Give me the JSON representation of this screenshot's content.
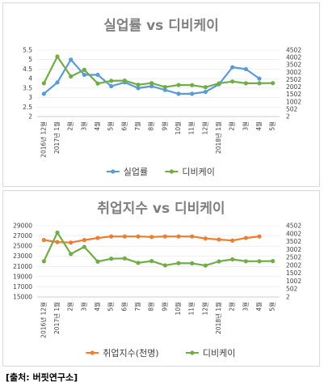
{
  "chart_data": [
    {
      "type": "line",
      "title": "실업률 vs 디비케이",
      "categories": [
        "2016년 12월",
        "2017년 1월",
        "2월",
        "3월",
        "4월",
        "5월",
        "6월",
        "7월",
        "8월",
        "9월",
        "10월",
        "11월",
        "12월",
        "2018년 1월",
        "2월",
        "3월",
        "4월",
        "5월"
      ],
      "left_axis": {
        "ylim": [
          2,
          5.5
        ],
        "ticks": [
          "2",
          "2.5",
          "3",
          "3.5",
          "4",
          "4.5",
          "5",
          "5.5"
        ]
      },
      "right_axis": {
        "ylim": [
          2,
          4502
        ],
        "ticks": [
          "2",
          "502",
          "1002",
          "1502",
          "2002",
          "2502",
          "3002",
          "3502",
          "4002",
          "4502"
        ]
      },
      "legend_position": "bottom",
      "series": [
        {
          "name": "실업률",
          "axis": "left",
          "color": "#5b9bd5",
          "values": [
            3.2,
            3.8,
            5.0,
            4.2,
            4.2,
            3.6,
            3.8,
            3.5,
            3.6,
            3.4,
            3.2,
            3.2,
            3.3,
            3.7,
            4.6,
            4.5,
            4.0,
            null
          ]
        },
        {
          "name": "디비케이",
          "axis": "right",
          "color": "#70ad47",
          "values": [
            2260,
            4070,
            2720,
            3170,
            2240,
            2420,
            2440,
            2160,
            2270,
            2000,
            2140,
            2130,
            1990,
            2250,
            2380,
            2260,
            2260,
            2270
          ]
        }
      ]
    },
    {
      "type": "line",
      "title": "취업지수 vs 디비케이",
      "categories": [
        "2016년 12월",
        "2017년 1월",
        "2월",
        "3월",
        "4월",
        "5월",
        "6월",
        "7월",
        "8월",
        "9월",
        "10월",
        "11월",
        "12월",
        "2018년 1월",
        "2월",
        "3월",
        "4월",
        "5월"
      ],
      "left_axis": {
        "ylim": [
          15000,
          29000
        ],
        "ticks": [
          "15000",
          "17000",
          "19000",
          "21000",
          "23000",
          "25000",
          "27000",
          "29000"
        ]
      },
      "right_axis": {
        "ylim": [
          2,
          4502
        ],
        "ticks": [
          "2",
          "502",
          "1002",
          "1502",
          "2002",
          "2502",
          "3002",
          "3502",
          "4002",
          "4502"
        ]
      },
      "legend_position": "bottom",
      "series": [
        {
          "name": "취업지수(천명)",
          "axis": "left",
          "color": "#ed7d31",
          "values": [
            26200,
            25800,
            25700,
            26200,
            26600,
            26900,
            26900,
            26900,
            26800,
            26900,
            26900,
            26900,
            26500,
            26300,
            26100,
            26600,
            26900,
            null
          ]
        },
        {
          "name": "디비케이",
          "axis": "right",
          "color": "#70ad47",
          "values": [
            2260,
            4070,
            2720,
            3170,
            2240,
            2420,
            2440,
            2160,
            2270,
            2000,
            2140,
            2130,
            1990,
            2250,
            2380,
            2260,
            2260,
            2270
          ]
        }
      ]
    }
  ],
  "source": "[출처: 버핏연구소]"
}
